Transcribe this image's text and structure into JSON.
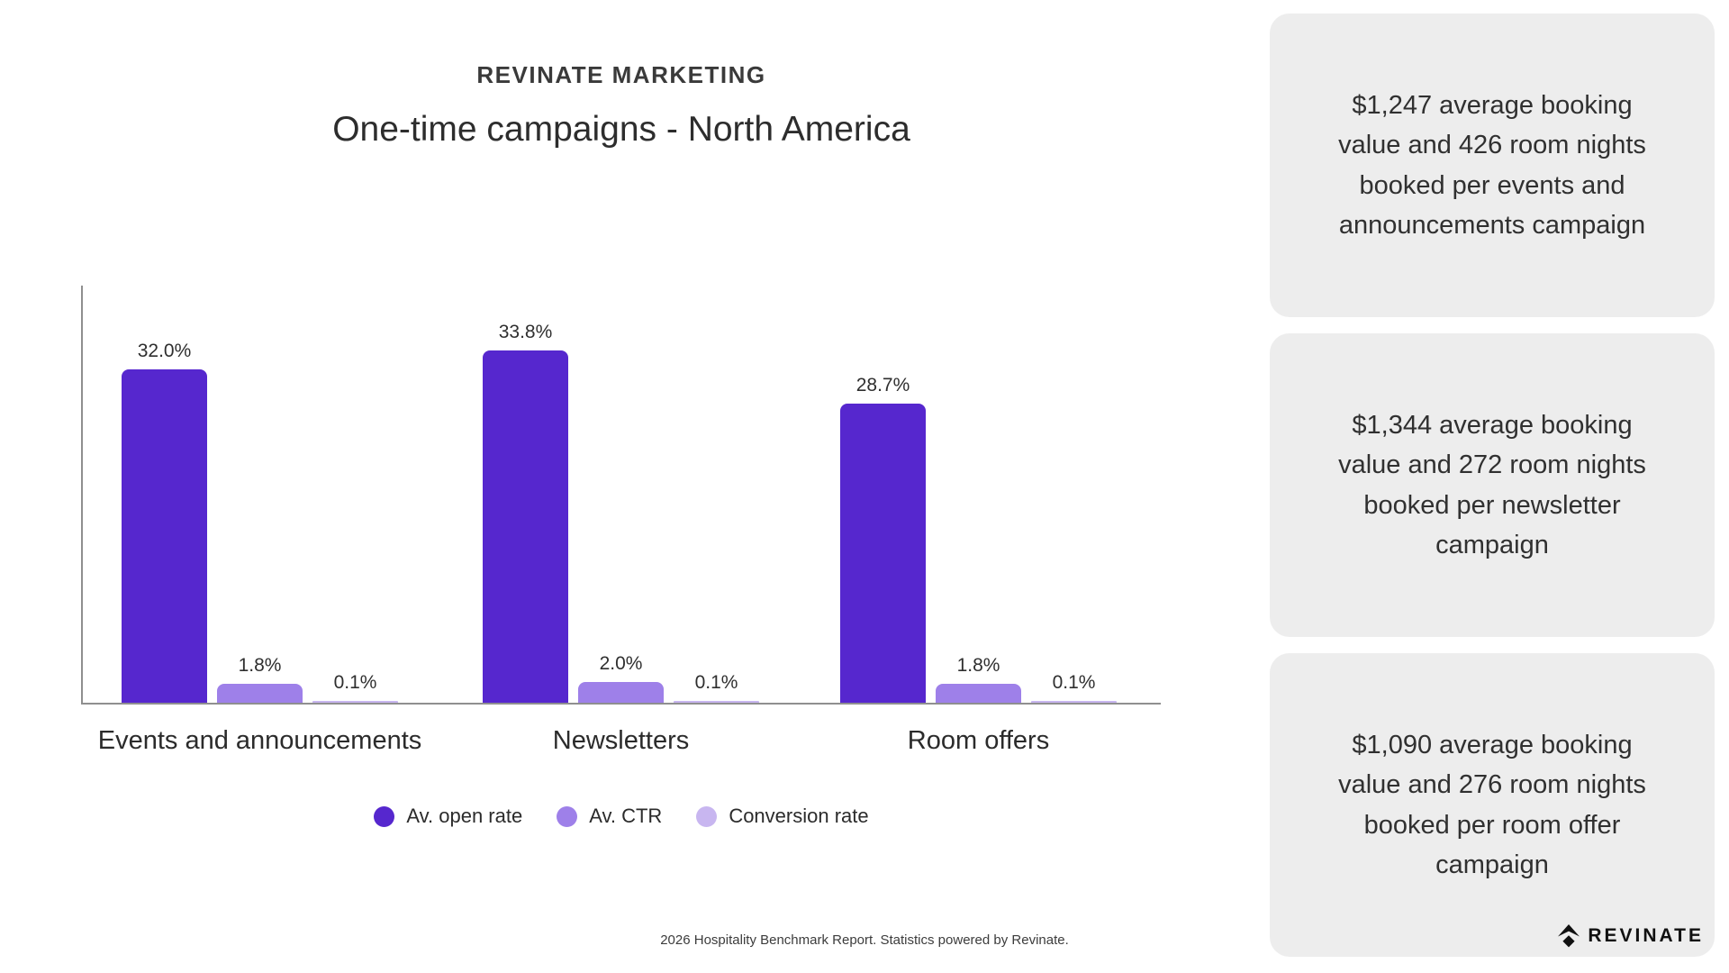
{
  "header": {
    "kicker": "REVINATE MARKETING",
    "title": "One-time campaigns - North America"
  },
  "chart_data": {
    "type": "bar",
    "categories": [
      "Events and announcements",
      "Newsletters",
      "Room offers"
    ],
    "series": [
      {
        "name": "Av. open rate",
        "color": "#5627ce",
        "values": [
          32.0,
          33.8,
          28.7
        ]
      },
      {
        "name": "Av. CTR",
        "color": "#9e80e9",
        "values": [
          1.8,
          2.0,
          1.8
        ]
      },
      {
        "name": "Conversion rate",
        "color": "#c8b6f0",
        "values": [
          0.1,
          0.1,
          0.1
        ]
      }
    ],
    "value_labels": [
      [
        "32.0%",
        "33.8%",
        "28.7%"
      ],
      [
        "1.8%",
        "2.0%",
        "1.8%"
      ],
      [
        "0.1%",
        "0.1%",
        "0.1%"
      ]
    ],
    "ylim": [
      0,
      40
    ],
    "grid": false,
    "legend_position": "bottom",
    "axis_color": "#8f8f8f"
  },
  "cards": [
    {
      "text": "$1,247 average booking\nvalue and 426 room nights\nbooked per events and\nannouncements campaign"
    },
    {
      "text": "$1,344 average booking\nvalue and 272 room nights\nbooked per newsletter\ncampaign"
    },
    {
      "text": "$1,090 average booking\nvalue and 276 room nights\nbooked per room offer\ncampaign"
    }
  ],
  "footer": {
    "text": "2026 Hospitality Benchmark Report. Statistics powered by Revinate."
  },
  "logo": {
    "text": "REVINATE"
  }
}
